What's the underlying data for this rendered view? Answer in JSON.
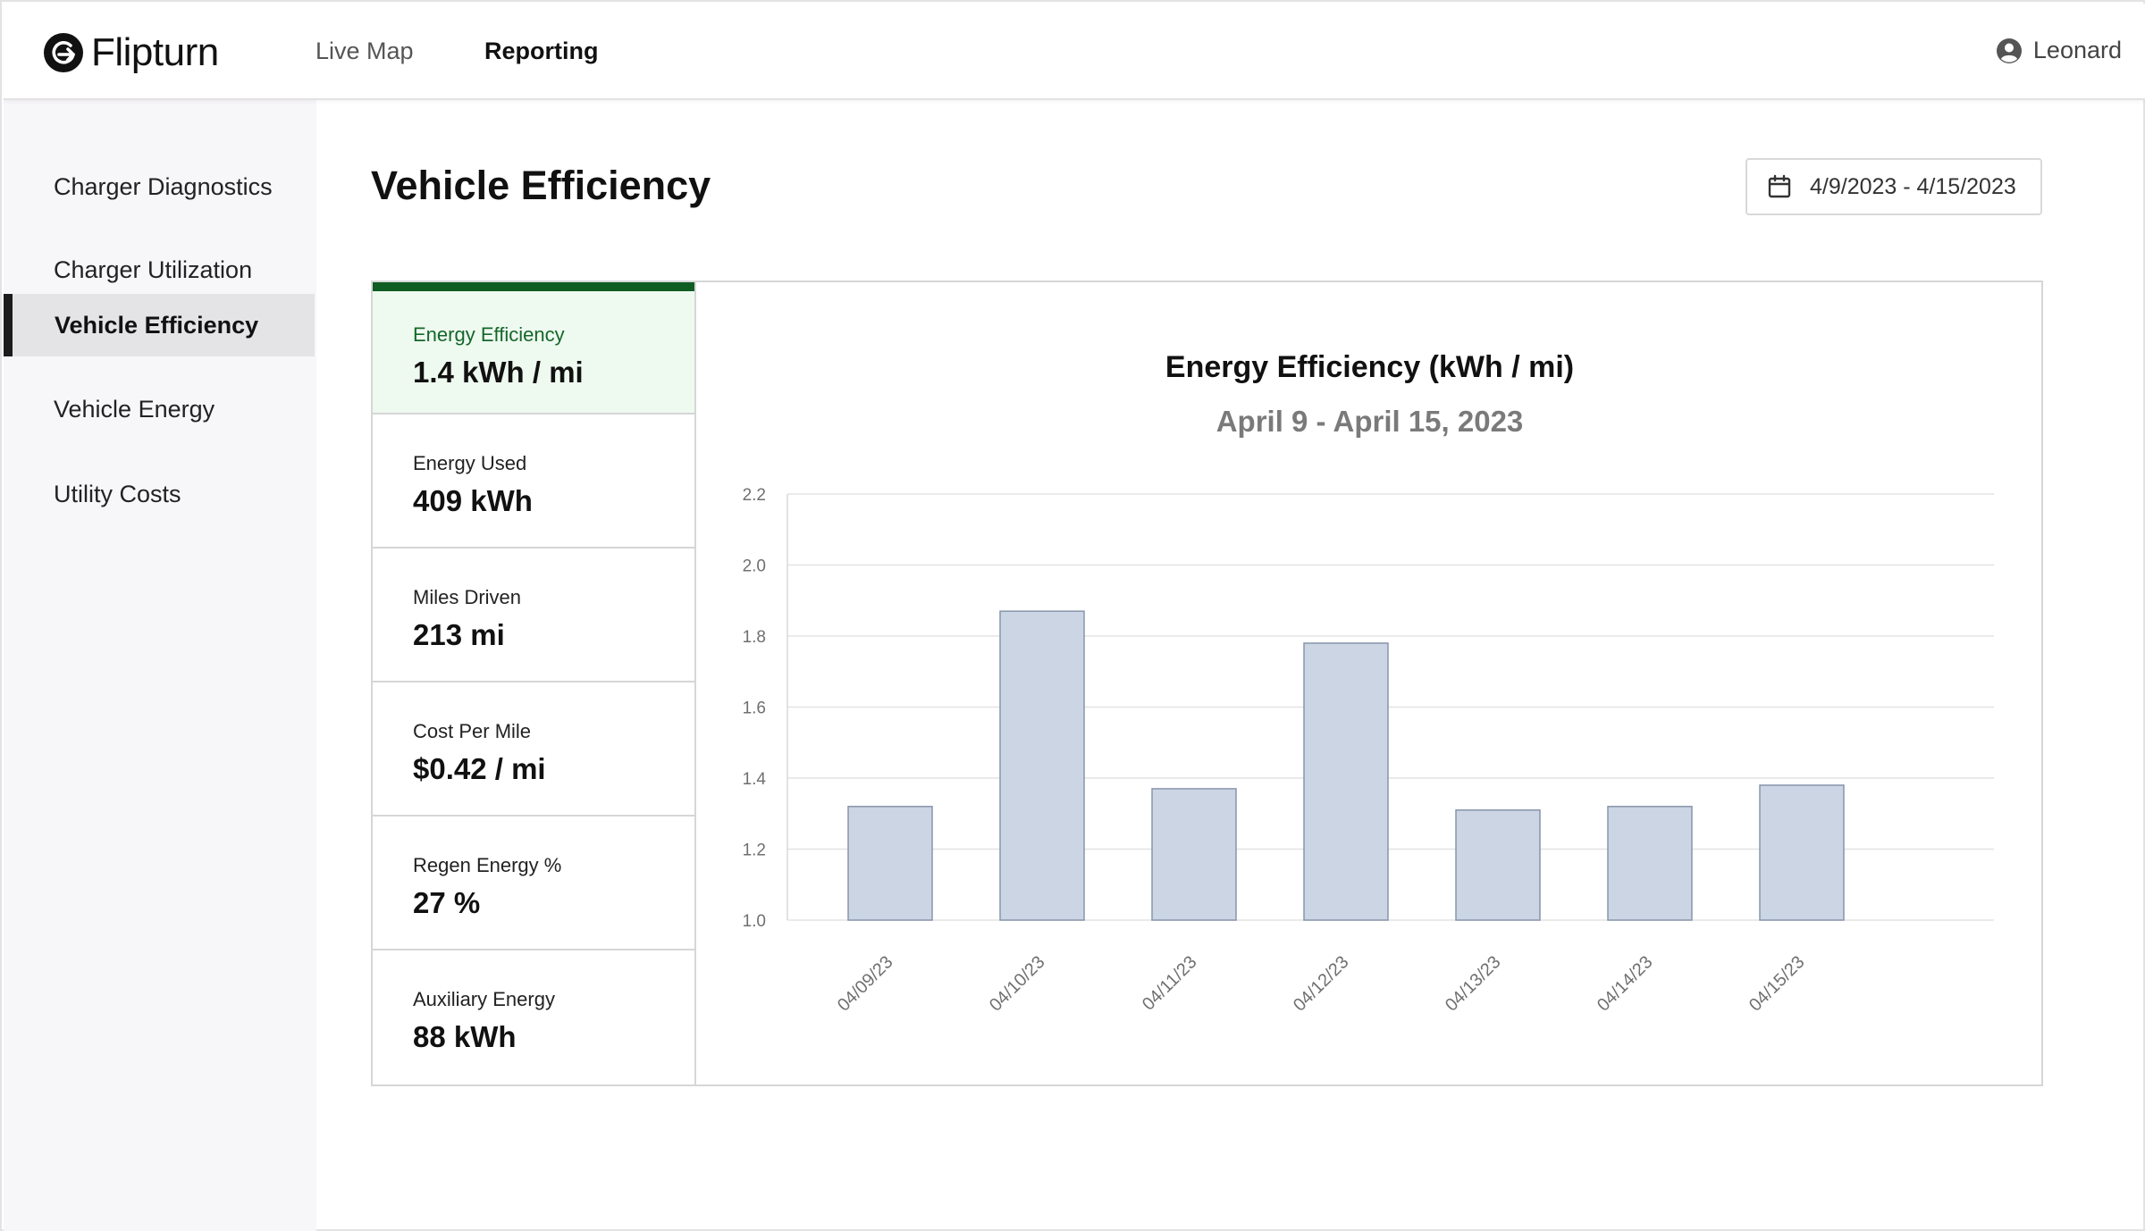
{
  "app": {
    "brand": "Flipturn",
    "nav": [
      {
        "label": "Live Map",
        "active": false
      },
      {
        "label": "Reporting",
        "active": true
      }
    ],
    "user": {
      "name": "Leonard",
      "icon": "user-circle-icon"
    }
  },
  "sidebar": {
    "items": [
      {
        "label": "Charger Diagnostics",
        "active": false
      },
      {
        "label": "Charger Utilization",
        "active": false
      },
      {
        "label": "Vehicle Efficiency",
        "active": true
      },
      {
        "label": "Vehicle Energy",
        "active": false
      },
      {
        "label": "Utility Costs",
        "active": false
      }
    ]
  },
  "page": {
    "title": "Vehicle Efficiency",
    "date_range": "4/9/2023 - 4/15/2023",
    "date_icon": "calendar-icon"
  },
  "metrics": [
    {
      "label": "Energy Efficiency",
      "value": "1.4 kWh / mi",
      "active": true
    },
    {
      "label": "Energy Used",
      "value": "409 kWh",
      "active": false
    },
    {
      "label": "Miles Driven",
      "value": "213 mi",
      "active": false
    },
    {
      "label": "Cost Per Mile",
      "value": "$0.42 / mi",
      "active": false
    },
    {
      "label": "Regen Energy %",
      "value": "27 %",
      "active": false
    },
    {
      "label": "Auxiliary Energy",
      "value": "88 kWh",
      "active": false
    }
  ],
  "colors": {
    "accent_green": "#0f5d22",
    "active_metric_bg": "#eef9f0",
    "bar_fill": "#ccd5e4",
    "bar_stroke": "#8795ab"
  },
  "chart_data": {
    "type": "bar",
    "title": "Energy Efficiency (kWh / mi)",
    "subtitle": "April 9 - April 15, 2023",
    "categories": [
      "04/09/23",
      "04/10/23",
      "04/11/23",
      "04/12/23",
      "04/13/23",
      "04/14/23",
      "04/15/23"
    ],
    "values": [
      1.32,
      1.87,
      1.37,
      1.78,
      1.31,
      1.32,
      1.38
    ],
    "ylim": [
      1.0,
      2.2
    ],
    "yticks": [
      "1.0",
      "1.2",
      "1.4",
      "1.6",
      "1.8",
      "2.0",
      "2.2"
    ],
    "grid": true,
    "legend": "none"
  }
}
